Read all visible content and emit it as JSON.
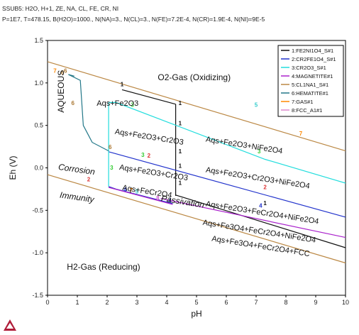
{
  "header": {
    "line1": "SSUB5: H2O, H+1, ZE, NA, CL, FE, CR, NI",
    "line2": "P=1E7, T=478.15, B(H2O)=1000., N(NA)=3., N(CL)=3., N(FE)=7.2E-4, N(CR)=1.9E-4, N(NI)=9E-5"
  },
  "chart_data": {
    "type": "line",
    "title": "",
    "xlabel": "pH",
    "ylabel": "Eh (V)",
    "xlim": [
      0,
      10
    ],
    "ylim": [
      -1.5,
      1.5
    ],
    "xticks": [
      0,
      1,
      2,
      3,
      4,
      5,
      6,
      7,
      8,
      9,
      10
    ],
    "yticks": [
      -1.5,
      -1.0,
      -0.5,
      0.0,
      0.5,
      1.0,
      1.5
    ],
    "grid": false,
    "legend_position": "top-right",
    "series": [
      {
        "name": "1:FE2NI1O4_S#1",
        "color": "#111111",
        "segments": [
          [
            [
              2.5,
              0.92
            ],
            [
              4.3,
              0.75
            ]
          ],
          [
            [
              4.3,
              0.75
            ],
            [
              4.3,
              -0.33
            ]
          ],
          [
            [
              4.3,
              -0.32
            ],
            [
              10,
              -0.94
            ]
          ]
        ]
      },
      {
        "name": "2:CR2FE1O4_S#1",
        "color": "#2233cc",
        "segments": [
          [
            [
              2.05,
              0.19
            ],
            [
              10,
              -0.58
            ]
          ],
          [
            [
              2.05,
              -0.22
            ],
            [
              2.3,
              -0.25
            ],
            [
              4.2,
              -0.42
            ]
          ]
        ]
      },
      {
        "name": "3:CR2O3_S#1",
        "color": "#22dddd",
        "segments": [
          [
            [
              2.05,
              0.77
            ],
            [
              2.3,
              0.77
            ],
            [
              7.3,
              0.1
            ],
            [
              10,
              -0.18
            ]
          ],
          [
            [
              2.05,
              0.77
            ],
            [
              2.05,
              -0.22
            ]
          ]
        ]
      },
      {
        "name": "4:MAGNETITE#1",
        "color": "#aa22cc",
        "segments": [
          [
            [
              2.05,
              -0.23
            ],
            [
              4.2,
              -0.43
            ]
          ],
          [
            [
              3.8,
              -0.36
            ],
            [
              10,
              -0.82
            ]
          ]
        ]
      },
      {
        "name": "5:CL1NA1_S#1",
        "color": "#bb8844",
        "segments": [
          [
            [
              0,
              -0.08
            ],
            [
              10,
              -1.12
            ]
          ],
          [
            [
              0,
              1.25
            ],
            [
              10,
              0.2
            ]
          ]
        ]
      },
      {
        "name": "6:HEMATITE#1",
        "color": "#227788",
        "segments": [
          [
            [
              0.7,
              1.1
            ],
            [
              1.1,
              1.03
            ],
            [
              1.2,
              0.5
            ],
            [
              1.5,
              0.3
            ],
            [
              2.05,
              0.2
            ]
          ],
          [
            [
              0.7,
              1.1
            ],
            [
              0.9,
              1.08
            ]
          ]
        ]
      },
      {
        "name": "7:GAS#1",
        "color": "#ff8800",
        "segments": []
      },
      {
        "name": "8:FCC_A1#1",
        "color": "#dd88cc",
        "segments": []
      }
    ],
    "markers": [
      {
        "text": "1",
        "x": 2.5,
        "y": 0.96,
        "color": "#111111"
      },
      {
        "text": "1",
        "x": 4.45,
        "y": 0.74,
        "color": "#111111"
      },
      {
        "text": "1",
        "x": 4.45,
        "y": 0.5,
        "color": "#111111"
      },
      {
        "text": "1",
        "x": 4.45,
        "y": 0.17,
        "color": "#111111"
      },
      {
        "text": "1",
        "x": 4.45,
        "y": -0.0,
        "color": "#111111"
      },
      {
        "text": "1",
        "x": 4.45,
        "y": -0.2,
        "color": "#111111"
      },
      {
        "text": "1",
        "x": 7.3,
        "y": -0.44,
        "color": "#111111"
      },
      {
        "text": "2",
        "x": 3.4,
        "y": 0.12,
        "color": "#dd3333"
      },
      {
        "text": "2",
        "x": 1.38,
        "y": -0.16,
        "color": "#dd3333"
      },
      {
        "text": "2",
        "x": 7.3,
        "y": -0.25,
        "color": "#dd3333"
      },
      {
        "text": "3",
        "x": 2.85,
        "y": 0.72,
        "color": "#33cc33"
      },
      {
        "text": "3",
        "x": 3.2,
        "y": 0.13,
        "color": "#33cc33"
      },
      {
        "text": "3",
        "x": 7.1,
        "y": 0.17,
        "color": "#33cc33"
      },
      {
        "text": "3",
        "x": 2.15,
        "y": -0.02,
        "color": "#33cc33"
      },
      {
        "text": "4",
        "x": 2.6,
        "y": -0.28,
        "color": "#2233cc"
      },
      {
        "text": "4",
        "x": 4.1,
        "y": -0.41,
        "color": "#2233cc"
      },
      {
        "text": "4",
        "x": 7.15,
        "y": -0.47,
        "color": "#2233cc"
      },
      {
        "text": "5",
        "x": 3.0,
        "y": -0.3,
        "color": "#33cccc"
      },
      {
        "text": "5",
        "x": 7.0,
        "y": 0.72,
        "color": "#33cccc"
      },
      {
        "text": "6",
        "x": 0.6,
        "y": 1.12,
        "color": "#aa7733"
      },
      {
        "text": "6",
        "x": 0.85,
        "y": 0.74,
        "color": "#aa7733"
      },
      {
        "text": "6",
        "x": 2.1,
        "y": 0.22,
        "color": "#aa7733"
      },
      {
        "text": "6",
        "x": 0.5,
        "y": 1.1,
        "color": "#aa7733"
      },
      {
        "text": "7",
        "x": 0.25,
        "y": 1.12,
        "color": "#ff8800"
      },
      {
        "text": "7",
        "x": 8.5,
        "y": 0.38,
        "color": "#ff8800"
      },
      {
        "text": "7",
        "x": 2.8,
        "y": -0.29,
        "color": "#ff8800"
      },
      {
        "text": "8",
        "x": 3.7,
        "y": -0.38,
        "color": "#cc55cc"
      }
    ],
    "region_labels": [
      {
        "text": "O2-Gas (Oxidizing)",
        "x": 3.7,
        "y": 1.03,
        "color": "#111111",
        "size": "big"
      },
      {
        "text": "AQUEOUS",
        "x": 0.55,
        "y": 0.65,
        "color": "#111111",
        "size": "big",
        "rotate": -90
      },
      {
        "text": "Aqs+Fe2O3",
        "x": 1.65,
        "y": 0.73,
        "color": "#111111"
      },
      {
        "text": "Aqs+Fe2O3+Cr2O3",
        "x": 2.25,
        "y": 0.4,
        "color": "#111111",
        "rotate": 9
      },
      {
        "text": "Aqs+Fe2O3+NiFe2O4",
        "x": 5.3,
        "y": 0.31,
        "color": "#111111",
        "rotate": 9
      },
      {
        "text": "Corrosion",
        "x": 0.35,
        "y": -0.02,
        "color": "#dd2222",
        "size": "big",
        "rotate": 8
      },
      {
        "text": "Aqs+Fe2O3+Cr2O3",
        "x": 2.4,
        "y": -0.02,
        "color": "#111111",
        "rotate": 9
      },
      {
        "text": "Aqs+Fe2O3+Cr2O3+NiFe2O4",
        "x": 5.3,
        "y": -0.05,
        "color": "#111111",
        "rotate": 9
      },
      {
        "text": "Immunity",
        "x": 0.4,
        "y": -0.35,
        "color": "#2222cc",
        "size": "big",
        "rotate": 8
      },
      {
        "text": "Aqs+FeCr2O4",
        "x": 2.5,
        "y": -0.26,
        "color": "#111111",
        "rotate": 9
      },
      {
        "text": "Passivation",
        "x": 3.8,
        "y": -0.39,
        "color": "#22aa22",
        "size": "big",
        "rotate": 9
      },
      {
        "text": "Aqs+Fe2O3+FeCr2O4+NiFe2O4",
        "x": 5.3,
        "y": -0.45,
        "color": "#111111",
        "rotate": 9
      },
      {
        "text": "Aqs+Fe3O4+FeCr2O4+NiFe2O4",
        "x": 5.2,
        "y": -0.67,
        "color": "#111111",
        "rotate": 9
      },
      {
        "text": "Aqs+Fe3O4+FeCr2O4+FCC",
        "x": 5.5,
        "y": -0.86,
        "color": "#111111",
        "rotate": 9
      },
      {
        "text": "H2-Gas (Reducing)",
        "x": 0.65,
        "y": -1.2,
        "color": "#111111",
        "size": "big"
      }
    ]
  }
}
